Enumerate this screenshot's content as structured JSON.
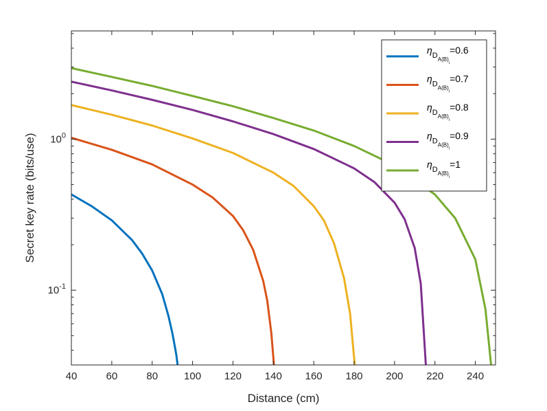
{
  "chart_data": {
    "type": "line",
    "xlabel": "Distance (cm)",
    "ylabel": "Secret key rate (bits/use)",
    "xlim": [
      40,
      250
    ],
    "ylim": [
      0.032,
      5.2
    ],
    "yscale": "log",
    "grid": false,
    "legend_position": "top-right",
    "x_ticks": [
      40,
      60,
      80,
      100,
      120,
      140,
      160,
      180,
      200,
      220,
      240
    ],
    "x_tick_labels": [
      "40",
      "60",
      "80",
      "100",
      "120",
      "140",
      "160",
      "180",
      "200",
      "220",
      "240"
    ],
    "y_ticks": [
      {
        "value": 1,
        "base": "10",
        "exp": "0"
      },
      {
        "value": 0.1,
        "base": "10",
        "exp": "-1"
      }
    ],
    "legend_symbol": "η",
    "legend_subscript": "D",
    "legend_subsubscript": "A(B)",
    "legend_index": "i",
    "series": [
      {
        "name": "=0.6",
        "color": "#0072BD",
        "x": [
          40,
          50,
          60,
          70,
          75,
          80,
          85,
          88,
          90,
          91,
          92,
          92.6
        ],
        "y": [
          0.43,
          0.36,
          0.29,
          0.215,
          0.175,
          0.135,
          0.094,
          0.068,
          0.052,
          0.044,
          0.037,
          0.032
        ]
      },
      {
        "name": "=0.7",
        "color": "#D95319",
        "x": [
          40,
          60,
          80,
          100,
          110,
          120,
          125,
          130,
          135,
          137,
          139,
          140.3
        ],
        "y": [
          1.02,
          0.85,
          0.68,
          0.5,
          0.41,
          0.31,
          0.25,
          0.185,
          0.115,
          0.085,
          0.052,
          0.032
        ]
      },
      {
        "name": "=0.8",
        "color": "#EDB120",
        "x": [
          40,
          60,
          80,
          100,
          120,
          140,
          150,
          160,
          165,
          170,
          175,
          178,
          180.3
        ],
        "y": [
          1.68,
          1.45,
          1.23,
          1.01,
          0.81,
          0.6,
          0.49,
          0.36,
          0.29,
          0.205,
          0.12,
          0.07,
          0.032
        ]
      },
      {
        "name": "=0.9",
        "color": "#7E2F8E",
        "x": [
          40,
          60,
          80,
          100,
          120,
          140,
          160,
          180,
          190,
          200,
          205,
          210,
          213,
          215.5
        ],
        "y": [
          2.4,
          2.1,
          1.82,
          1.56,
          1.31,
          1.08,
          0.86,
          0.64,
          0.52,
          0.38,
          0.295,
          0.19,
          0.11,
          0.032
        ]
      },
      {
        "name": "=1",
        "color": "#77AC30",
        "x": [
          40,
          60,
          80,
          100,
          120,
          140,
          160,
          180,
          200,
          220,
          230,
          240,
          245,
          247.8
        ],
        "y": [
          2.95,
          2.58,
          2.25,
          1.93,
          1.65,
          1.38,
          1.14,
          0.9,
          0.67,
          0.43,
          0.3,
          0.16,
          0.075,
          0.032
        ]
      }
    ]
  }
}
